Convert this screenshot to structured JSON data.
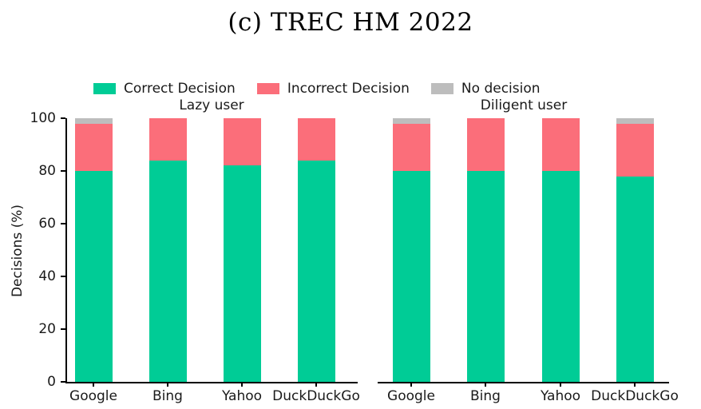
{
  "chart_data": {
    "type": "bar",
    "stacked": true,
    "title": "(c) TREC HM 2022",
    "ylabel": "Decisions (%)",
    "ylim": [
      0,
      100
    ],
    "yticks": [
      0,
      20,
      40,
      60,
      80,
      100
    ],
    "grid": false,
    "legend_position": "top",
    "legend": [
      {
        "label": "Correct Decision",
        "color": "#00CC96"
      },
      {
        "label": "Incorrect Decision",
        "color": "#FB6E7A"
      },
      {
        "label": "No decision",
        "color": "#BDBDBD"
      }
    ],
    "groups": [
      {
        "title": "Lazy user",
        "categories": [
          "Google",
          "Bing",
          "Yahoo",
          "DuckDuckGo"
        ],
        "series": [
          {
            "name": "Correct Decision",
            "values": [
              80,
              84,
              82,
              84
            ]
          },
          {
            "name": "Incorrect Decision",
            "values": [
              18,
              16,
              18,
              16
            ]
          },
          {
            "name": "No decision",
            "values": [
              2,
              0,
              0,
              0
            ]
          }
        ]
      },
      {
        "title": "Diligent user",
        "categories": [
          "Google",
          "Bing",
          "Yahoo",
          "DuckDuckGo"
        ],
        "series": [
          {
            "name": "Correct Decision",
            "values": [
              80,
              80,
              80,
              78
            ]
          },
          {
            "name": "Incorrect Decision",
            "values": [
              18,
              20,
              20,
              20
            ]
          },
          {
            "name": "No decision",
            "values": [
              2,
              0,
              0,
              2
            ]
          }
        ]
      }
    ]
  }
}
